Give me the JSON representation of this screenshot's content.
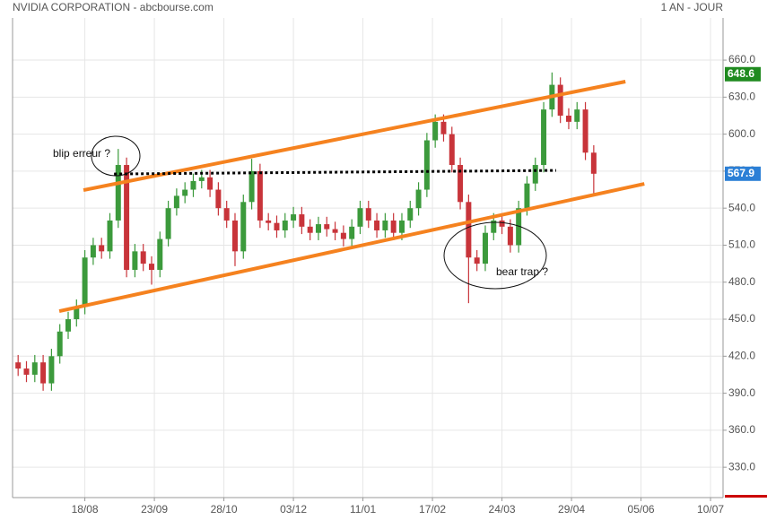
{
  "chart_data": {
    "type": "candlestick",
    "title": "NVIDIA CORPORATION - abcbourse.com",
    "subtitle": "1 AN - JOUR",
    "up_color": "#3c9a3c",
    "down_color": "#c8343a",
    "x": [
      0,
      3,
      6,
      9,
      12,
      15,
      18,
      21,
      24,
      27,
      30,
      33,
      36,
      39,
      42,
      45,
      48,
      51,
      54,
      57,
      60,
      63,
      66,
      69,
      72,
      75,
      78,
      81,
      84,
      87,
      90,
      93,
      96,
      99,
      102,
      105,
      108,
      111,
      114,
      117,
      120,
      123,
      126,
      129,
      132,
      135,
      138,
      141,
      144,
      147,
      150,
      153,
      156,
      159,
      162,
      165,
      168,
      171,
      174,
      177,
      180,
      183,
      186,
      189,
      192,
      195,
      198,
      201,
      204,
      207
    ],
    "open": [
      415,
      410,
      405,
      415,
      398,
      420,
      440,
      450,
      460,
      500,
      510,
      505,
      530,
      575,
      490,
      505,
      495,
      490,
      515,
      540,
      550,
      555,
      562,
      565,
      555,
      540,
      530,
      505,
      545,
      570,
      530,
      528,
      522,
      530,
      535,
      525,
      520,
      527,
      523,
      520,
      515,
      525,
      540,
      530,
      522,
      530,
      520,
      530,
      540,
      555,
      595,
      610,
      600,
      575,
      545,
      500,
      495,
      520,
      530,
      525,
      510,
      540,
      560,
      575,
      620,
      640,
      615,
      610,
      620,
      585
    ],
    "high": [
      421,
      416,
      421,
      421,
      426,
      446,
      456,
      466,
      506,
      516,
      516,
      536,
      588,
      581,
      511,
      511,
      501,
      521,
      546,
      556,
      561,
      568,
      571,
      571,
      561,
      546,
      536,
      551,
      580,
      576,
      536,
      534,
      536,
      541,
      541,
      531,
      533,
      533,
      529,
      526,
      531,
      546,
      546,
      536,
      536,
      536,
      536,
      546,
      561,
      601,
      616,
      616,
      606,
      581,
      551,
      506,
      526,
      536,
      536,
      531,
      546,
      566,
      581,
      626,
      650,
      646,
      621,
      626,
      626,
      591
    ],
    "low": [
      404,
      399,
      399,
      392,
      392,
      414,
      434,
      444,
      454,
      494,
      499,
      499,
      524,
      484,
      484,
      489,
      478,
      484,
      509,
      534,
      544,
      549,
      556,
      549,
      534,
      524,
      493,
      499,
      539,
      524,
      522,
      516,
      516,
      524,
      519,
      514,
      514,
      517,
      514,
      509,
      509,
      519,
      524,
      516,
      516,
      514,
      514,
      524,
      534,
      549,
      589,
      594,
      569,
      539,
      463,
      489,
      489,
      514,
      519,
      504,
      504,
      534,
      554,
      569,
      614,
      609,
      604,
      604,
      579,
      551
    ],
    "close": [
      410,
      405,
      415,
      398,
      420,
      440,
      450,
      460,
      500,
      510,
      505,
      530,
      575,
      490,
      505,
      495,
      490,
      515,
      540,
      550,
      555,
      562,
      565,
      555,
      540,
      530,
      505,
      545,
      570,
      530,
      528,
      522,
      530,
      535,
      525,
      520,
      527,
      523,
      520,
      515,
      525,
      540,
      530,
      522,
      530,
      520,
      530,
      540,
      555,
      595,
      610,
      600,
      575,
      545,
      500,
      495,
      520,
      530,
      525,
      510,
      540,
      560,
      575,
      620,
      640,
      615,
      610,
      620,
      585,
      567.9
    ],
    "xlim": [
      -2,
      253.5
    ],
    "xticks": [
      {
        "value": 24,
        "label": "18/08"
      },
      {
        "value": 49,
        "label": "23/09"
      },
      {
        "value": 74,
        "label": "28/10"
      },
      {
        "value": 99,
        "label": "03/12"
      },
      {
        "value": 124,
        "label": "11/01"
      },
      {
        "value": 149,
        "label": "17/02"
      },
      {
        "value": 174,
        "label": "24/03"
      },
      {
        "value": 199,
        "label": "29/04"
      },
      {
        "value": 224,
        "label": "05/06"
      },
      {
        "value": 249,
        "label": "10/07"
      }
    ],
    "ylim": [
      305.4,
      694.2
    ],
    "yticks": [
      {
        "value": 330,
        "label": "330.0"
      },
      {
        "value": 360,
        "label": "360.0"
      },
      {
        "value": 390,
        "label": "390.0"
      },
      {
        "value": 420,
        "label": "420.0"
      },
      {
        "value": 450,
        "label": "450.0"
      },
      {
        "value": 480,
        "label": "480.0"
      },
      {
        "value": 510,
        "label": "510.0"
      },
      {
        "value": 540,
        "label": "540.0"
      },
      {
        "value": 570,
        "label": "570.0"
      },
      {
        "value": 600,
        "label": "600.0"
      },
      {
        "value": 630,
        "label": "630.0"
      },
      {
        "value": 660,
        "label": "660.0"
      }
    ],
    "grid": true,
    "price_markers": [
      {
        "value": 648.6,
        "color": "#1f8a1f"
      },
      {
        "value": 567.9,
        "color": "#2b7fd6"
      }
    ],
    "trend_lines": [
      {
        "x": [
          23.5,
          218.4
        ],
        "y": [
          554.6,
          642.6
        ],
        "color": "#f5821f",
        "dashed": false
      },
      {
        "x": [
          14.8,
          225.2
        ],
        "y": [
          456.5,
          559.7
        ],
        "color": "#f5821f",
        "dashed": false
      },
      {
        "x": [
          34.5,
          193.5
        ],
        "y": [
          567.7,
          570.6
        ],
        "color": "#000000",
        "dashed": true
      }
    ],
    "annotations": [
      "blip erreur ?",
      "bear trap ?"
    ]
  }
}
